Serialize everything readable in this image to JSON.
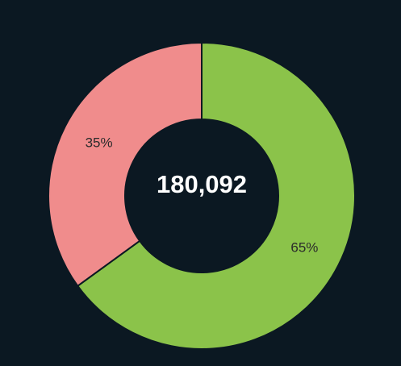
{
  "chart_data": {
    "type": "donut",
    "center_label": "180,092",
    "values": [
      65,
      35
    ],
    "value_labels": [
      "65%",
      "35%"
    ],
    "colors": [
      "#8bc34a",
      "#f08c8c"
    ]
  }
}
